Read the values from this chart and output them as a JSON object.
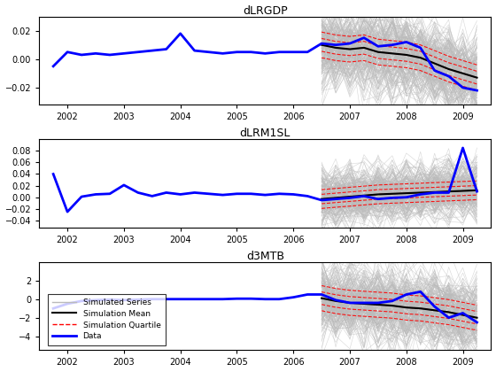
{
  "titles": [
    "dLRGDP",
    "dLRM1SL",
    "d3MTB"
  ],
  "xlim": [
    2001.5,
    2009.5
  ],
  "forecast_start": 2006.5,
  "x_ticks": [
    2002,
    2003,
    2004,
    2005,
    2006,
    2007,
    2008,
    2009
  ],
  "panels": [
    {
      "ylim": [
        -0.032,
        0.03
      ],
      "yticks": [
        -0.02,
        0,
        0.02
      ],
      "data_x": [
        2001.75,
        2002.0,
        2002.25,
        2002.5,
        2002.75,
        2003.0,
        2003.25,
        2003.5,
        2003.75,
        2004.0,
        2004.25,
        2004.5,
        2004.75,
        2005.0,
        2005.25,
        2005.5,
        2005.75,
        2006.0,
        2006.25,
        2006.5,
        2006.75,
        2007.0,
        2007.25,
        2007.5,
        2007.75,
        2008.0,
        2008.25,
        2008.5,
        2008.75,
        2009.0,
        2009.25
      ],
      "data_y": [
        -0.005,
        0.005,
        0.003,
        0.004,
        0.003,
        0.004,
        0.005,
        0.006,
        0.007,
        0.018,
        0.006,
        0.005,
        0.004,
        0.005,
        0.005,
        0.004,
        0.005,
        0.005,
        0.005,
        0.011,
        0.01,
        0.011,
        0.015,
        0.009,
        0.01,
        0.012,
        0.008,
        -0.008,
        -0.012,
        -0.02,
        -0.022
      ],
      "sim_center": [
        0.01,
        0.008,
        0.007,
        0.008,
        0.005,
        0.004,
        0.003,
        0.001,
        -0.003,
        -0.007,
        -0.01,
        -0.013
      ],
      "sim_spread": 0.01,
      "n_quartile_lines": 5,
      "noise_scale": 0.006
    },
    {
      "ylim": [
        -0.052,
        0.1
      ],
      "yticks": [
        -0.04,
        -0.02,
        0,
        0.02,
        0.04,
        0.06,
        0.08
      ],
      "data_x": [
        2001.75,
        2002.0,
        2002.25,
        2002.5,
        2002.75,
        2003.0,
        2003.25,
        2003.5,
        2003.75,
        2004.0,
        2004.25,
        2004.5,
        2004.75,
        2005.0,
        2005.25,
        2005.5,
        2005.75,
        2006.0,
        2006.25,
        2006.5,
        2006.75,
        2007.0,
        2007.25,
        2007.5,
        2007.75,
        2008.0,
        2008.25,
        2008.5,
        2008.75,
        2009.0,
        2009.25
      ],
      "data_y": [
        0.04,
        -0.025,
        0.001,
        0.005,
        0.006,
        0.021,
        0.008,
        0.002,
        0.008,
        0.005,
        0.008,
        0.006,
        0.004,
        0.006,
        0.006,
        0.004,
        0.006,
        0.005,
        0.002,
        -0.005,
        -0.003,
        -0.001,
        0.002,
        -0.003,
        -0.001,
        0.0,
        0.005,
        0.008,
        0.008,
        0.085,
        0.01
      ],
      "sim_center": [
        -0.003,
        -0.001,
        0.001,
        0.003,
        0.005,
        0.006,
        0.007,
        0.008,
        0.009,
        0.01,
        0.011,
        0.012
      ],
      "sim_spread": 0.018,
      "n_quartile_lines": 5,
      "noise_scale": 0.01
    },
    {
      "ylim": [
        -5.5,
        4.0
      ],
      "yticks": [
        -4,
        -2,
        0,
        2
      ],
      "data_x": [
        2001.75,
        2002.0,
        2002.25,
        2002.5,
        2002.75,
        2003.0,
        2003.25,
        2003.5,
        2003.75,
        2004.0,
        2004.25,
        2004.5,
        2004.75,
        2005.0,
        2005.25,
        2005.5,
        2005.75,
        2006.0,
        2006.25,
        2006.5,
        2006.75,
        2007.0,
        2007.25,
        2007.5,
        2007.75,
        2008.0,
        2008.25,
        2008.5,
        2008.75,
        2009.0,
        2009.25
      ],
      "data_y": [
        -1.0,
        -0.5,
        -0.2,
        -0.1,
        -0.05,
        -0.1,
        -0.05,
        0.0,
        0.0,
        0.0,
        0.0,
        0.0,
        0.0,
        0.05,
        0.05,
        0.0,
        0.0,
        0.2,
        0.5,
        0.5,
        -0.1,
        -0.4,
        -0.4,
        -0.4,
        -0.2,
        0.5,
        0.8,
        -0.8,
        -2.0,
        -1.5,
        -2.5
      ],
      "sim_center": [
        0.1,
        -0.2,
        -0.4,
        -0.5,
        -0.6,
        -0.7,
        -0.9,
        -1.0,
        -1.2,
        -1.4,
        -1.7,
        -2.0
      ],
      "sim_spread": 1.5,
      "n_quartile_lines": 5,
      "noise_scale": 0.8
    }
  ],
  "legend_items": [
    "Simulated Series",
    "Simulation Mean",
    "Simulation Quartile",
    "Data"
  ],
  "colors": {
    "sim_series": "#bbbbbb",
    "sim_mean": "#000000",
    "sim_quartile": "#ff0000",
    "data": "#0000ff",
    "background": "#ffffff"
  },
  "n_sim": 200,
  "figsize": [
    5.6,
    4.2
  ],
  "dpi": 100
}
